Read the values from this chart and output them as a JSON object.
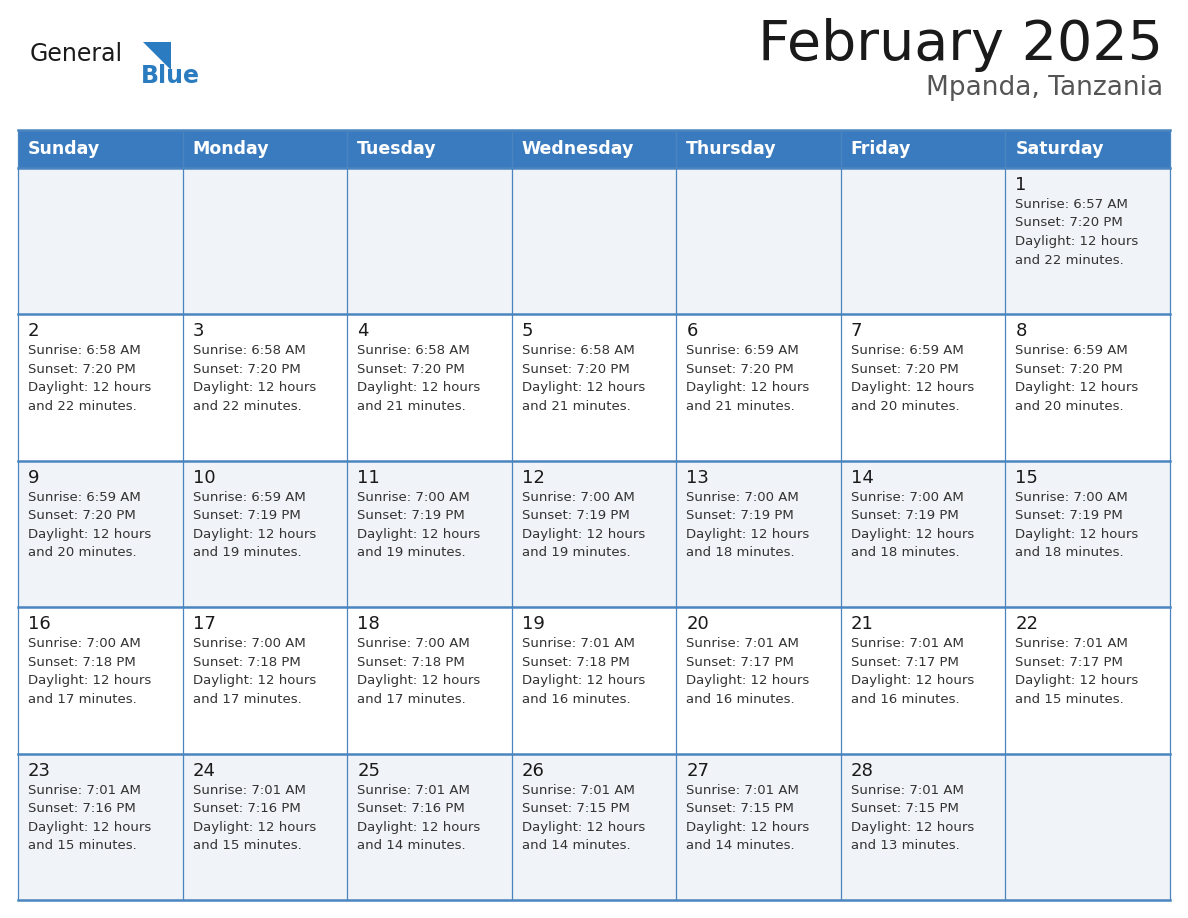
{
  "title": "February 2025",
  "subtitle": "Mpanda, Tanzania",
  "header_color": "#3a7bbf",
  "header_text_color": "#ffffff",
  "cell_bg": "#f0f3f7",
  "cell_bg_white": "#ffffff",
  "border_color": "#4a85c0",
  "day_headers": [
    "Sunday",
    "Monday",
    "Tuesday",
    "Wednesday",
    "Thursday",
    "Friday",
    "Saturday"
  ],
  "title_color": "#1a1a1a",
  "subtitle_color": "#555555",
  "day_num_color": "#1a1a1a",
  "cell_text_color": "#333333",
  "logo_general_color": "#1a1a1a",
  "logo_blue_color": "#2a7bbf",
  "weeks": [
    [
      {
        "day": 0,
        "text": ""
      },
      {
        "day": 0,
        "text": ""
      },
      {
        "day": 0,
        "text": ""
      },
      {
        "day": 0,
        "text": ""
      },
      {
        "day": 0,
        "text": ""
      },
      {
        "day": 0,
        "text": ""
      },
      {
        "day": 1,
        "text": "Sunrise: 6:57 AM\nSunset: 7:20 PM\nDaylight: 12 hours\nand 22 minutes."
      }
    ],
    [
      {
        "day": 2,
        "text": "Sunrise: 6:58 AM\nSunset: 7:20 PM\nDaylight: 12 hours\nand 22 minutes."
      },
      {
        "day": 3,
        "text": "Sunrise: 6:58 AM\nSunset: 7:20 PM\nDaylight: 12 hours\nand 22 minutes."
      },
      {
        "day": 4,
        "text": "Sunrise: 6:58 AM\nSunset: 7:20 PM\nDaylight: 12 hours\nand 21 minutes."
      },
      {
        "day": 5,
        "text": "Sunrise: 6:58 AM\nSunset: 7:20 PM\nDaylight: 12 hours\nand 21 minutes."
      },
      {
        "day": 6,
        "text": "Sunrise: 6:59 AM\nSunset: 7:20 PM\nDaylight: 12 hours\nand 21 minutes."
      },
      {
        "day": 7,
        "text": "Sunrise: 6:59 AM\nSunset: 7:20 PM\nDaylight: 12 hours\nand 20 minutes."
      },
      {
        "day": 8,
        "text": "Sunrise: 6:59 AM\nSunset: 7:20 PM\nDaylight: 12 hours\nand 20 minutes."
      }
    ],
    [
      {
        "day": 9,
        "text": "Sunrise: 6:59 AM\nSunset: 7:20 PM\nDaylight: 12 hours\nand 20 minutes."
      },
      {
        "day": 10,
        "text": "Sunrise: 6:59 AM\nSunset: 7:19 PM\nDaylight: 12 hours\nand 19 minutes."
      },
      {
        "day": 11,
        "text": "Sunrise: 7:00 AM\nSunset: 7:19 PM\nDaylight: 12 hours\nand 19 minutes."
      },
      {
        "day": 12,
        "text": "Sunrise: 7:00 AM\nSunset: 7:19 PM\nDaylight: 12 hours\nand 19 minutes."
      },
      {
        "day": 13,
        "text": "Sunrise: 7:00 AM\nSunset: 7:19 PM\nDaylight: 12 hours\nand 18 minutes."
      },
      {
        "day": 14,
        "text": "Sunrise: 7:00 AM\nSunset: 7:19 PM\nDaylight: 12 hours\nand 18 minutes."
      },
      {
        "day": 15,
        "text": "Sunrise: 7:00 AM\nSunset: 7:19 PM\nDaylight: 12 hours\nand 18 minutes."
      }
    ],
    [
      {
        "day": 16,
        "text": "Sunrise: 7:00 AM\nSunset: 7:18 PM\nDaylight: 12 hours\nand 17 minutes."
      },
      {
        "day": 17,
        "text": "Sunrise: 7:00 AM\nSunset: 7:18 PM\nDaylight: 12 hours\nand 17 minutes."
      },
      {
        "day": 18,
        "text": "Sunrise: 7:00 AM\nSunset: 7:18 PM\nDaylight: 12 hours\nand 17 minutes."
      },
      {
        "day": 19,
        "text": "Sunrise: 7:01 AM\nSunset: 7:18 PM\nDaylight: 12 hours\nand 16 minutes."
      },
      {
        "day": 20,
        "text": "Sunrise: 7:01 AM\nSunset: 7:17 PM\nDaylight: 12 hours\nand 16 minutes."
      },
      {
        "day": 21,
        "text": "Sunrise: 7:01 AM\nSunset: 7:17 PM\nDaylight: 12 hours\nand 16 minutes."
      },
      {
        "day": 22,
        "text": "Sunrise: 7:01 AM\nSunset: 7:17 PM\nDaylight: 12 hours\nand 15 minutes."
      }
    ],
    [
      {
        "day": 23,
        "text": "Sunrise: 7:01 AM\nSunset: 7:16 PM\nDaylight: 12 hours\nand 15 minutes."
      },
      {
        "day": 24,
        "text": "Sunrise: 7:01 AM\nSunset: 7:16 PM\nDaylight: 12 hours\nand 15 minutes."
      },
      {
        "day": 25,
        "text": "Sunrise: 7:01 AM\nSunset: 7:16 PM\nDaylight: 12 hours\nand 14 minutes."
      },
      {
        "day": 26,
        "text": "Sunrise: 7:01 AM\nSunset: 7:15 PM\nDaylight: 12 hours\nand 14 minutes."
      },
      {
        "day": 27,
        "text": "Sunrise: 7:01 AM\nSunset: 7:15 PM\nDaylight: 12 hours\nand 14 minutes."
      },
      {
        "day": 28,
        "text": "Sunrise: 7:01 AM\nSunset: 7:15 PM\nDaylight: 12 hours\nand 13 minutes."
      },
      {
        "day": 0,
        "text": ""
      }
    ]
  ]
}
